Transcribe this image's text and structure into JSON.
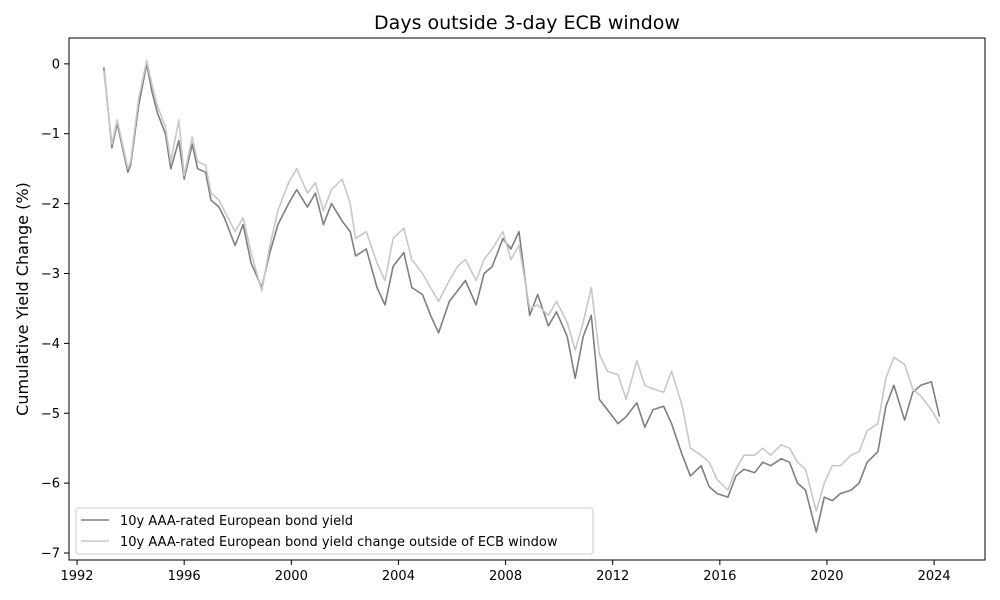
{
  "chart_data": {
    "type": "line",
    "title": "Days outside 3-day ECB window",
    "xlabel": "",
    "ylabel": "Cumulative Yield Change (%)",
    "xlim": [
      1991.7,
      2025.9
    ],
    "ylim": [
      -7.1,
      0.37
    ],
    "x_ticks": [
      1992,
      1996,
      2000,
      2004,
      2008,
      2012,
      2016,
      2020,
      2024
    ],
    "y_ticks": [
      0,
      -1,
      -2,
      -3,
      -4,
      -5,
      -6,
      -7
    ],
    "y_tick_labels": [
      "0",
      "−1",
      "−2",
      "−3",
      "−4",
      "−5",
      "−6",
      "−7"
    ],
    "grid": false,
    "legend_position": "lower-left",
    "series": [
      {
        "name": "10y AAA-rated European bond yield",
        "color": "#7f7f7f",
        "x": [
          1993.0,
          1993.3,
          1993.5,
          1993.9,
          1994.0,
          1994.3,
          1994.6,
          1994.8,
          1995.0,
          1995.3,
          1995.5,
          1995.8,
          1996.0,
          1996.3,
          1996.5,
          1996.8,
          1997.0,
          1997.3,
          1997.5,
          1997.9,
          1998.2,
          1998.5,
          1998.9,
          1999.2,
          1999.5,
          1999.9,
          2000.2,
          2000.6,
          2000.9,
          2001.2,
          2001.5,
          2001.9,
          2002.2,
          2002.4,
          2002.8,
          2003.2,
          2003.5,
          2003.8,
          2004.2,
          2004.5,
          2004.9,
          2005.2,
          2005.5,
          2005.9,
          2006.2,
          2006.5,
          2006.9,
          2007.2,
          2007.5,
          2007.9,
          2008.2,
          2008.5,
          2008.9,
          2009.2,
          2009.6,
          2009.9,
          2010.3,
          2010.6,
          2010.9,
          2011.2,
          2011.5,
          2011.8,
          2012.2,
          2012.5,
          2012.9,
          2013.2,
          2013.5,
          2013.9,
          2014.2,
          2014.6,
          2014.9,
          2015.3,
          2015.6,
          2015.9,
          2016.3,
          2016.6,
          2016.9,
          2017.3,
          2017.6,
          2017.9,
          2018.3,
          2018.6,
          2018.9,
          2019.2,
          2019.6,
          2019.9,
          2020.2,
          2020.5,
          2020.9,
          2021.2,
          2021.5,
          2021.9,
          2022.2,
          2022.5,
          2022.9,
          2023.2,
          2023.5,
          2023.9,
          2024.2
        ],
        "y": [
          -0.05,
          -1.2,
          -0.85,
          -1.55,
          -1.45,
          -0.6,
          -0.0,
          -0.4,
          -0.7,
          -1.0,
          -1.5,
          -1.1,
          -1.65,
          -1.15,
          -1.5,
          -1.55,
          -1.95,
          -2.05,
          -2.2,
          -2.6,
          -2.3,
          -2.85,
          -3.2,
          -2.7,
          -2.3,
          -2.0,
          -1.8,
          -2.05,
          -1.85,
          -2.3,
          -2.0,
          -2.25,
          -2.4,
          -2.75,
          -2.65,
          -3.2,
          -3.45,
          -2.9,
          -2.7,
          -3.2,
          -3.3,
          -3.6,
          -3.85,
          -3.4,
          -3.25,
          -3.1,
          -3.45,
          -3.0,
          -2.9,
          -2.5,
          -2.65,
          -2.4,
          -3.6,
          -3.3,
          -3.75,
          -3.55,
          -3.9,
          -4.5,
          -3.9,
          -3.6,
          -4.8,
          -4.95,
          -5.15,
          -5.05,
          -4.85,
          -5.2,
          -4.95,
          -4.9,
          -5.15,
          -5.6,
          -5.9,
          -5.75,
          -6.05,
          -6.15,
          -6.2,
          -5.9,
          -5.8,
          -5.85,
          -5.7,
          -5.75,
          -5.65,
          -5.7,
          -6.0,
          -6.1,
          -6.7,
          -6.2,
          -6.25,
          -6.15,
          -6.1,
          -6.0,
          -5.7,
          -5.55,
          -4.9,
          -4.6,
          -5.1,
          -4.7,
          -4.6,
          -4.55,
          -5.05
        ]
      },
      {
        "name": "10y AAA-rated European bond yield change outside of ECB window",
        "color": "#c8c8c8",
        "x": [
          1993.0,
          1993.3,
          1993.5,
          1993.9,
          1994.0,
          1994.3,
          1994.6,
          1994.8,
          1995.0,
          1995.3,
          1995.5,
          1995.8,
          1996.0,
          1996.3,
          1996.5,
          1996.8,
          1997.0,
          1997.3,
          1997.5,
          1997.9,
          1998.2,
          1998.5,
          1998.9,
          1999.2,
          1999.5,
          1999.9,
          2000.2,
          2000.6,
          2000.9,
          2001.2,
          2001.5,
          2001.9,
          2002.2,
          2002.4,
          2002.8,
          2003.2,
          2003.5,
          2003.8,
          2004.2,
          2004.5,
          2004.9,
          2005.2,
          2005.5,
          2005.9,
          2006.2,
          2006.5,
          2006.9,
          2007.2,
          2007.5,
          2007.9,
          2008.2,
          2008.5,
          2008.9,
          2009.2,
          2009.6,
          2009.9,
          2010.3,
          2010.6,
          2010.9,
          2011.2,
          2011.5,
          2011.8,
          2012.2,
          2012.5,
          2012.9,
          2013.2,
          2013.5,
          2013.9,
          2014.2,
          2014.6,
          2014.9,
          2015.3,
          2015.6,
          2015.9,
          2016.3,
          2016.6,
          2016.9,
          2017.3,
          2017.6,
          2017.9,
          2018.3,
          2018.6,
          2018.9,
          2019.2,
          2019.6,
          2019.9,
          2020.2,
          2020.5,
          2020.9,
          2021.2,
          2021.5,
          2021.9,
          2022.2,
          2022.5,
          2022.9,
          2023.2,
          2023.5,
          2023.9,
          2024.2
        ],
        "y": [
          -0.1,
          -1.15,
          -0.8,
          -1.5,
          -1.4,
          -0.5,
          0.05,
          -0.3,
          -0.6,
          -0.9,
          -1.4,
          -0.8,
          -1.6,
          -1.05,
          -1.4,
          -1.45,
          -1.85,
          -1.95,
          -2.1,
          -2.4,
          -2.2,
          -2.7,
          -3.25,
          -2.6,
          -2.1,
          -1.7,
          -1.5,
          -1.85,
          -1.7,
          -2.1,
          -1.8,
          -1.65,
          -2.0,
          -2.5,
          -2.4,
          -2.85,
          -3.1,
          -2.5,
          -2.35,
          -2.8,
          -3.0,
          -3.2,
          -3.4,
          -3.1,
          -2.9,
          -2.8,
          -3.1,
          -2.8,
          -2.65,
          -2.4,
          -2.8,
          -2.6,
          -3.5,
          -3.45,
          -3.6,
          -3.4,
          -3.7,
          -4.1,
          -3.7,
          -3.2,
          -4.15,
          -4.4,
          -4.45,
          -4.8,
          -4.25,
          -4.6,
          -4.65,
          -4.7,
          -4.4,
          -4.9,
          -5.5,
          -5.6,
          -5.7,
          -5.95,
          -6.1,
          -5.8,
          -5.6,
          -5.6,
          -5.5,
          -5.6,
          -5.45,
          -5.5,
          -5.7,
          -5.8,
          -6.4,
          -6.0,
          -5.75,
          -5.75,
          -5.6,
          -5.55,
          -5.25,
          -5.15,
          -4.5,
          -4.2,
          -4.3,
          -4.65,
          -4.75,
          -4.95,
          -5.15
        ]
      }
    ]
  }
}
